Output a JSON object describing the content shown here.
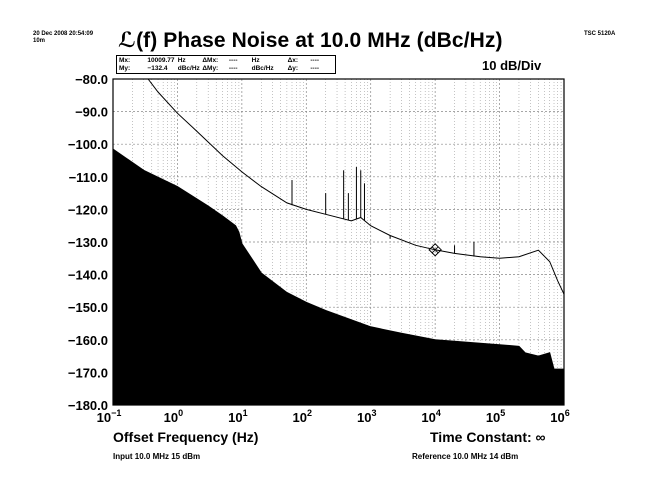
{
  "header": {
    "timestamp_line1": "20 Dec 2008 20:54:09",
    "timestamp_line2": "10m",
    "instrument": "TSC 5120A"
  },
  "marker_box": {
    "row1": [
      "Mx:",
      "10009.77",
      "Hz",
      "ΔMx:",
      "----",
      "Hz",
      "Δx:",
      "----"
    ],
    "row2": [
      "My:",
      "−132.4",
      "dBc/Hz",
      "ΔMy:",
      "----",
      "dBc/Hz",
      "Δy:",
      "----"
    ]
  },
  "footer": {
    "time_constant": "Time Constant: ∞",
    "input": "Input 10.0 MHz 15 dBm",
    "reference": "Reference 10.0 MHz 14 dBm"
  },
  "colors": {
    "trace": "#000000",
    "fill": "#000000",
    "grid": "#888888",
    "background": "#ffffff"
  },
  "chart_data": {
    "type": "line",
    "title": "ℒ(f) Phase Noise at 10.0 MHz (dBc/Hz)",
    "scale_label": "10 dB/Div",
    "xlabel": "Offset Frequency (Hz)",
    "ylabel": "",
    "x_scale": "log",
    "xlim": [
      0.1,
      1000000
    ],
    "ylim": [
      -180,
      -80
    ],
    "y_ticks": [
      "−80.0",
      "−90.0",
      "−100.0",
      "−110.0",
      "−120.0",
      "−130.0",
      "−140.0",
      "−150.0",
      "−160.0",
      "−170.0",
      "−180.0"
    ],
    "y_tick_values": [
      -80,
      -90,
      -100,
      -110,
      -120,
      -130,
      -140,
      -150,
      -160,
      -170,
      -180
    ],
    "x_ticks": [
      {
        "value": 0.1,
        "base": "10",
        "exp": "−1"
      },
      {
        "value": 1,
        "base": "10",
        "exp": "0"
      },
      {
        "value": 10,
        "base": "10",
        "exp": "1"
      },
      {
        "value": 100,
        "base": "10",
        "exp": "2"
      },
      {
        "value": 1000,
        "base": "10",
        "exp": "3"
      },
      {
        "value": 10000,
        "base": "10",
        "exp": "4"
      },
      {
        "value": 100000,
        "base": "10",
        "exp": "5"
      },
      {
        "value": 1000000,
        "base": "10",
        "exp": "6"
      }
    ],
    "grid": true,
    "series": [
      {
        "role": "measured phase noise trace",
        "x": [
          0.35,
          0.5,
          1,
          2,
          5,
          10,
          20,
          50,
          100,
          200,
          500,
          700,
          1000,
          2000,
          5000,
          10000,
          20000,
          50000,
          100000,
          200000,
          400000,
          600000,
          800000,
          1000000
        ],
        "y": [
          -80,
          -84,
          -90.5,
          -96,
          -103.5,
          -108.5,
          -113,
          -118,
          -120,
          -121.5,
          -123.5,
          -122.5,
          -125,
          -128,
          -131,
          -132.4,
          -133.5,
          -134.5,
          -135,
          -134.5,
          -132.5,
          -136,
          -142,
          -146
        ]
      },
      {
        "role": "noise floor (filled)",
        "x": [
          0.1,
          0.3,
          1,
          3,
          5,
          8,
          9,
          10,
          20,
          50,
          100,
          200,
          1000,
          3000,
          10000,
          100000,
          200000,
          250000,
          400000,
          600000,
          700000,
          1000000
        ],
        "y": [
          -101.5,
          -108,
          -113,
          -119,
          -122,
          -125,
          -127,
          -130.5,
          -139.5,
          -145.5,
          -148.5,
          -151,
          -156,
          -158,
          -160,
          -161.5,
          -162,
          -164,
          -165,
          -164,
          -169,
          -169
        ]
      }
    ],
    "spurs": [
      {
        "x": 60,
        "y_top": -111
      },
      {
        "x": 200,
        "y_top": -115
      },
      {
        "x": 380,
        "y_top": -108
      },
      {
        "x": 450,
        "y_top": -115
      },
      {
        "x": 600,
        "y_top": -107
      },
      {
        "x": 700,
        "y_top": -108
      },
      {
        "x": 800,
        "y_top": -112
      },
      {
        "x": 2000,
        "y_top": -129
      },
      {
        "x": 20000,
        "y_top": -131
      },
      {
        "x": 40000,
        "y_top": -130
      }
    ],
    "marker": {
      "x": 10009.77,
      "y": -132.4
    }
  }
}
